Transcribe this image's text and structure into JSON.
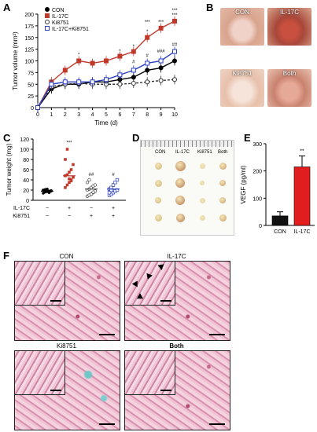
{
  "panels": {
    "A": "A",
    "B": "B",
    "C": "C",
    "D": "D",
    "E": "E",
    "F": "F"
  },
  "panelA": {
    "ylabel": "Tumor volume (mm³)",
    "xlabel": "Time (d)",
    "yticks": [
      "0",
      "25",
      "50",
      "75",
      "100",
      "125",
      "150",
      "175",
      "200"
    ],
    "xticks": [
      "0",
      "1",
      "2",
      "3",
      "4",
      "5",
      "6",
      "7",
      "8",
      "9",
      "10"
    ],
    "legend": [
      "CON",
      "IL-17C",
      "Ki8751",
      "IL-17C+Ki8751"
    ],
    "stars": [
      "*",
      "*",
      "*",
      "*",
      "***",
      "***",
      "***",
      "***"
    ],
    "hash": [
      "#",
      "#",
      "###",
      "##"
    ]
  },
  "panelB": {
    "labels": [
      "CON",
      "IL-17C",
      "Ki8751",
      "Both"
    ]
  },
  "panelC": {
    "ylabel": "Tumor weight (mg)",
    "yticks": [
      "0",
      "20",
      "40",
      "60",
      "80",
      "100",
      "120"
    ],
    "row1_label": "IL-17C",
    "row2_label": "Ki8751",
    "row1": [
      "−",
      "+",
      "−",
      "+"
    ],
    "row2": [
      "−",
      "−",
      "+",
      "+"
    ],
    "sig": [
      "***",
      "##",
      "#"
    ]
  },
  "panelD": {
    "labels": [
      "CON",
      "IL-17C",
      "Ki8751",
      "Both"
    ]
  },
  "panelE": {
    "ylabel": "VEGF (pg/ml)",
    "yticks": [
      "0",
      "100",
      "200",
      "300"
    ],
    "categories": [
      "CON",
      "IL-17C"
    ],
    "sig": "**"
  },
  "panelF": {
    "labels": [
      "CON",
      "IL-17C",
      "Ki8751",
      "Both"
    ]
  },
  "chart_data": [
    {
      "type": "line",
      "panel": "A",
      "x": [
        0,
        1,
        2,
        3,
        4,
        5,
        6,
        7,
        8,
        9,
        10
      ],
      "series": [
        {
          "name": "CON",
          "values": [
            0,
            40,
            50,
            50,
            55,
            55,
            60,
            65,
            80,
            85,
            100
          ]
        },
        {
          "name": "IL-17C",
          "values": [
            0,
            55,
            80,
            100,
            95,
            100,
            110,
            120,
            150,
            170,
            185
          ]
        },
        {
          "name": "Ki8751",
          "values": [
            0,
            45,
            50,
            52,
            50,
            50,
            50,
            52,
            55,
            58,
            60
          ]
        },
        {
          "name": "IL-17C+Ki8751",
          "values": [
            0,
            50,
            55,
            55,
            55,
            60,
            70,
            80,
            95,
            100,
            120
          ]
        }
      ],
      "xlabel": "Time (d)",
      "ylabel": "Tumor volume (mm³)",
      "ylim": [
        0,
        200
      ],
      "xlim": [
        0,
        10
      ]
    },
    {
      "type": "scatter",
      "panel": "C",
      "categories": [
        "CON",
        "IL-17C",
        "Ki8751",
        "IL-17C+Ki8751"
      ],
      "means": [
        18,
        48,
        22,
        22
      ],
      "points": [
        [
          14,
          16,
          17,
          18,
          19,
          20,
          21,
          22,
          15,
          18,
          20
        ],
        [
          25,
          30,
          35,
          40,
          45,
          48,
          50,
          55,
          60,
          70,
          80,
          100,
          42,
          38
        ],
        [
          8,
          10,
          12,
          15,
          18,
          20,
          22,
          25,
          28,
          30,
          35,
          40,
          12,
          16
        ],
        [
          10,
          12,
          15,
          18,
          20,
          22,
          25,
          30,
          35,
          40,
          15,
          20
        ]
      ],
      "ylabel": "Tumor weight (mg)",
      "ylim": [
        0,
        120
      ]
    },
    {
      "type": "bar",
      "panel": "E",
      "categories": [
        "CON",
        "IL-17C"
      ],
      "values": [
        35,
        215
      ],
      "errors": [
        15,
        40
      ],
      "ylabel": "VEGF (pg/ml)",
      "ylim": [
        0,
        300
      ]
    }
  ]
}
